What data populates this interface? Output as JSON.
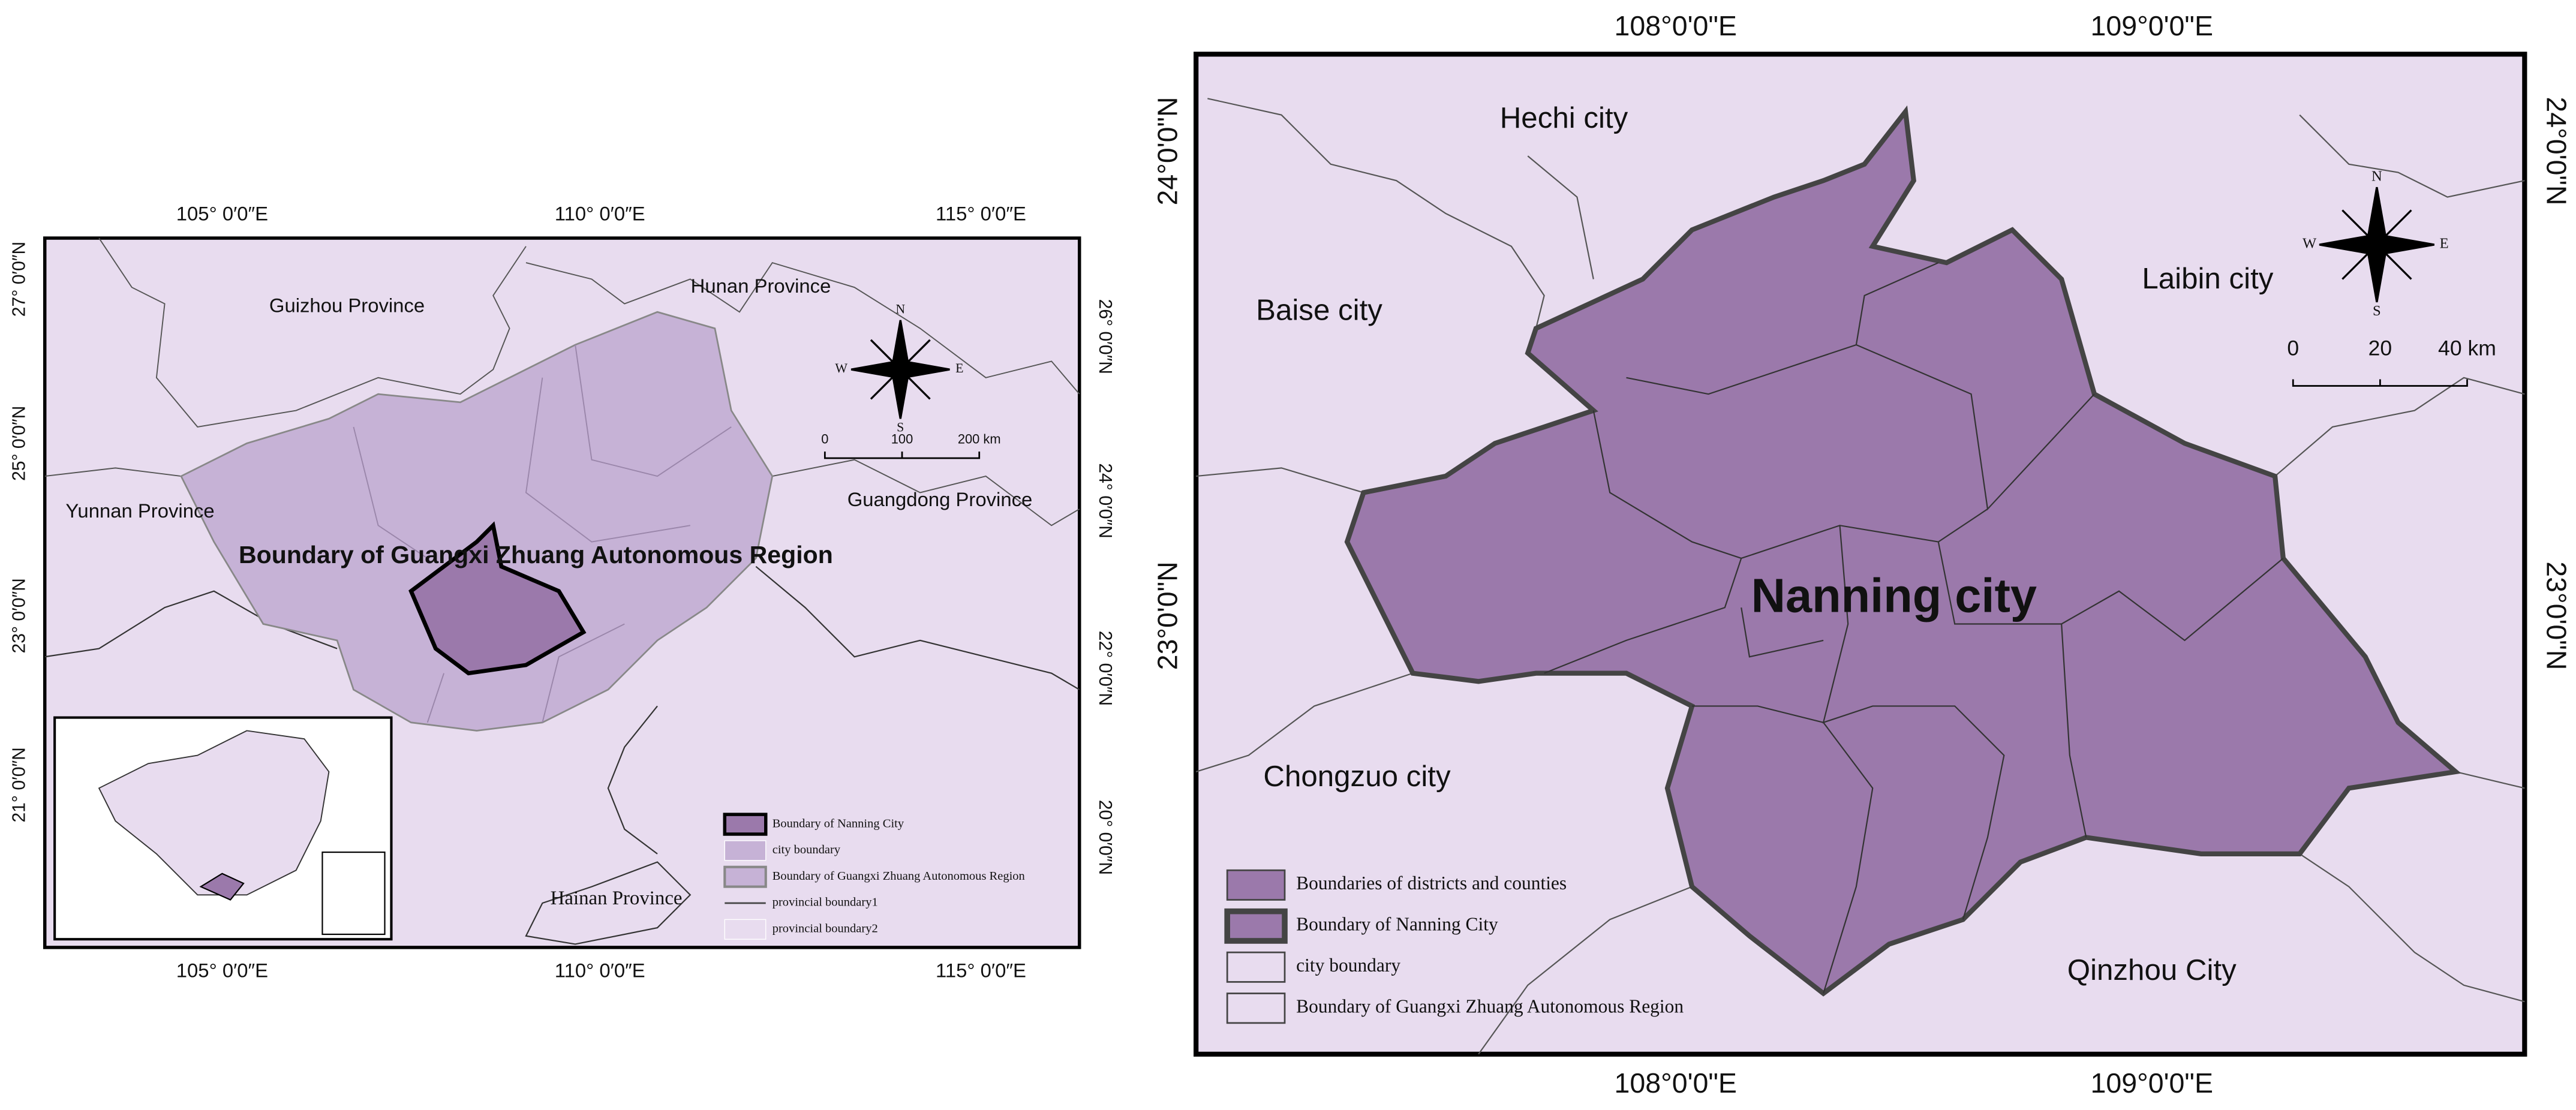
{
  "left_map": {
    "top_ticks": [
      "105° 0′0″E",
      "110° 0′0″E",
      "115° 0′0″E"
    ],
    "bottom_ticks": [
      "105° 0′0″E",
      "110° 0′0″E",
      "115° 0′0″E"
    ],
    "left_ticks": [
      "27° 0′0″N",
      "25° 0′0″N",
      "23° 0′0″N",
      "21° 0′0″N"
    ],
    "right_ticks": [
      "26° 0′0″N",
      "24° 0′0″N",
      "22° 0′0″N",
      "20° 0′0″N"
    ],
    "place_labels": [
      "Guizhou Province",
      "Hunan Province",
      "Yunnan Province",
      "Guangdong Province",
      "Hainan Province"
    ],
    "region_label": "Boundary of Guangxi Zhuang Autonomous Region",
    "compass": [
      "N",
      "S",
      "E",
      "W"
    ],
    "scale_bar": [
      "0",
      "100",
      "200 km"
    ],
    "legend": [
      "Boundary of Nanning City",
      "city boundary",
      "Boundary of Guangxi Zhuang Autonomous Region",
      "provincial boundary1",
      "provincial boundary2"
    ]
  },
  "right_map": {
    "top_ticks": [
      "108°0'0\"E",
      "109°0'0\"E"
    ],
    "bottom_ticks": [
      "108°0'0\"E",
      "109°0'0\"E"
    ],
    "left_ticks": [
      "24°0'0\"N",
      "23°0'0\"N"
    ],
    "right_ticks": [
      "24°0'0\"N",
      "23°0'0\"N"
    ],
    "place_labels": [
      "Hechi city",
      "Baise city",
      "Laibin city",
      "Chongzuo city",
      "Qinzhou City"
    ],
    "city_label": "Nanning city",
    "compass": [
      "N",
      "S",
      "E",
      "W"
    ],
    "scale_bar": [
      "0",
      "20",
      "40 km"
    ],
    "legend": [
      "Boundaries of districts and counties",
      "Boundary of Nanning City",
      "city boundary",
      "Boundary of Guangxi Zhuang Autonomous Region"
    ]
  }
}
